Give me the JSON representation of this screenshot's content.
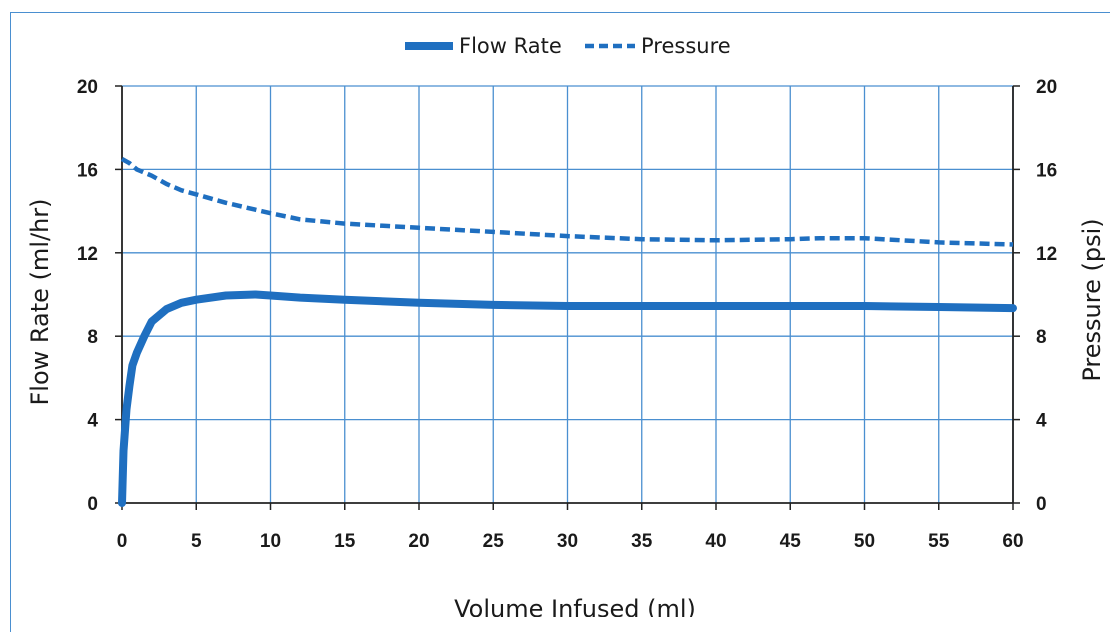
{
  "chart_data": {
    "type": "line",
    "xlabel": "Volume Infused (ml)",
    "ylabel_left": "Flow Rate (ml/hr)",
    "ylabel_right": "Pressure (psi)",
    "xlim": [
      0,
      60
    ],
    "ylim_left": [
      0,
      20
    ],
    "ylim_right": [
      0,
      20
    ],
    "x_ticks": [
      "0",
      "5",
      "10",
      "15",
      "20",
      "25",
      "30",
      "35",
      "40",
      "45",
      "50",
      "55",
      "60"
    ],
    "y_ticks_left": [
      "0",
      "4",
      "8",
      "12",
      "16",
      "20"
    ],
    "y_ticks_right": [
      "0",
      "4",
      "8",
      "12",
      "16",
      "20"
    ],
    "grid": true,
    "legend_position": "top-center",
    "series": [
      {
        "name": "Flow Rate",
        "axis": "left",
        "style": "solid",
        "color": "#1f6fc0",
        "points": [
          [
            0,
            0
          ],
          [
            0.1,
            2.5
          ],
          [
            0.3,
            4.5
          ],
          [
            0.5,
            5.6
          ],
          [
            0.7,
            6.6
          ],
          [
            1,
            7.2
          ],
          [
            1.5,
            8.0
          ],
          [
            2,
            8.7
          ],
          [
            3,
            9.3
          ],
          [
            4,
            9.6
          ],
          [
            5,
            9.75
          ],
          [
            7,
            9.95
          ],
          [
            9,
            10.0
          ],
          [
            10,
            9.95
          ],
          [
            12,
            9.85
          ],
          [
            15,
            9.75
          ],
          [
            20,
            9.6
          ],
          [
            25,
            9.5
          ],
          [
            30,
            9.45
          ],
          [
            35,
            9.45
          ],
          [
            40,
            9.45
          ],
          [
            45,
            9.45
          ],
          [
            50,
            9.45
          ],
          [
            55,
            9.4
          ],
          [
            60,
            9.35
          ]
        ]
      },
      {
        "name": "Pressure",
        "axis": "right",
        "style": "dashed",
        "color": "#1f6fc0",
        "points": [
          [
            0,
            16.5
          ],
          [
            0.5,
            16.3
          ],
          [
            1,
            16.0
          ],
          [
            2,
            15.7
          ],
          [
            3,
            15.3
          ],
          [
            4,
            15.0
          ],
          [
            5,
            14.8
          ],
          [
            7,
            14.4
          ],
          [
            10,
            13.9
          ],
          [
            12,
            13.6
          ],
          [
            15,
            13.4
          ],
          [
            20,
            13.2
          ],
          [
            25,
            13.0
          ],
          [
            30,
            12.8
          ],
          [
            35,
            12.65
          ],
          [
            40,
            12.6
          ],
          [
            45,
            12.65
          ],
          [
            47,
            12.7
          ],
          [
            50,
            12.7
          ],
          [
            55,
            12.5
          ],
          [
            60,
            12.4
          ]
        ]
      }
    ]
  }
}
